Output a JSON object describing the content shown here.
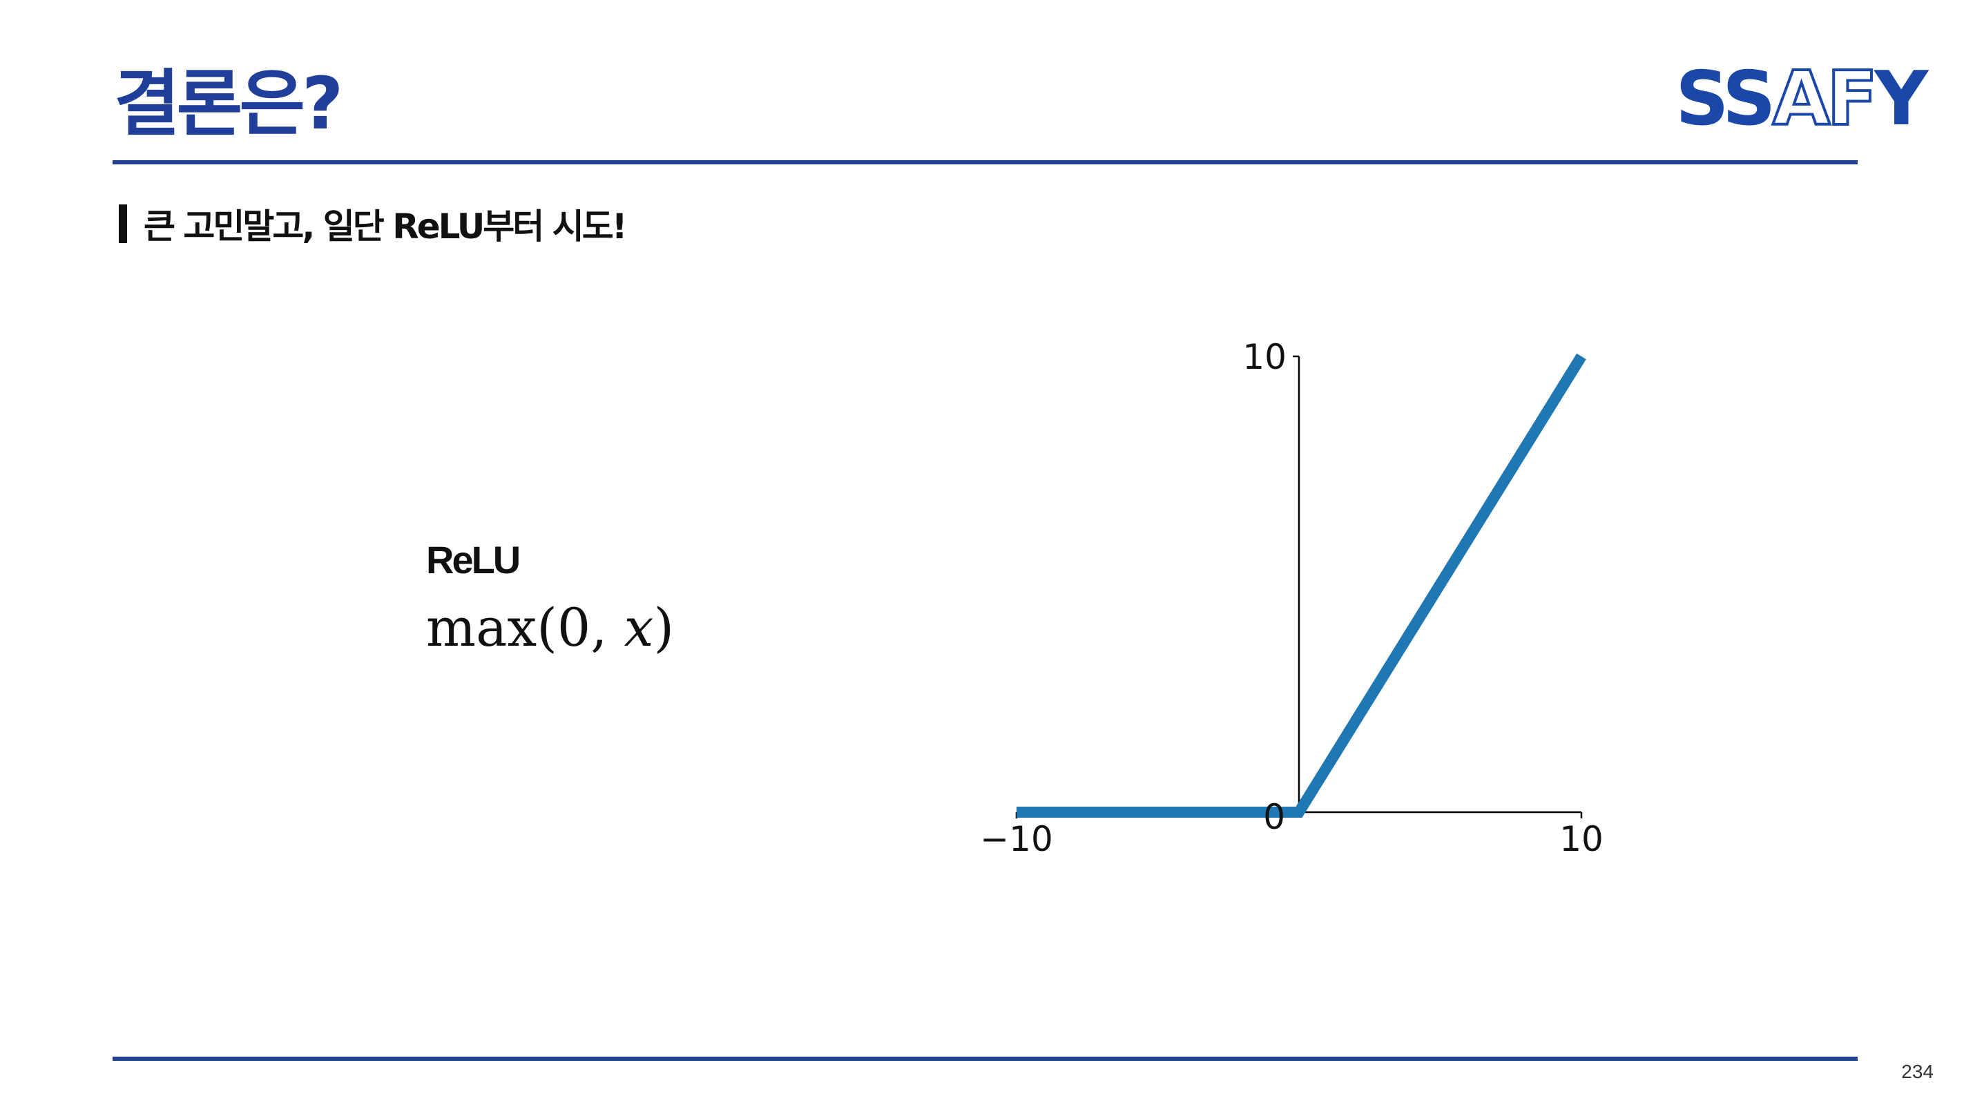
{
  "slide": {
    "title": "결론은?",
    "logo": {
      "part1": "SS",
      "part2": "AF",
      "part3": "Y"
    },
    "subtitle": "큰 고민말고, 일단 ReLU부터 시도!",
    "function": {
      "name": "ReLU",
      "formula_prefix": "max(0, ",
      "formula_var": "x",
      "formula_suffix": ")"
    },
    "page_number": "234",
    "colors": {
      "accent": "#1f3f9b",
      "rule": "#1f3f8f",
      "line": "#1f77b4"
    }
  },
  "chart_data": {
    "type": "line",
    "title": "",
    "xlabel": "",
    "ylabel": "",
    "xlim": [
      -10,
      10
    ],
    "ylim": [
      0,
      10
    ],
    "x_ticks": [
      -10,
      10
    ],
    "y_ticks": [
      10
    ],
    "x_tick_labels": [
      "−10",
      "10"
    ],
    "y_tick_labels": [
      "10"
    ],
    "origin_label": "0",
    "grid": false,
    "series": [
      {
        "x": [
          -10,
          0,
          10
        ],
        "y": [
          0,
          0,
          10
        ],
        "color": "#1f77b4"
      }
    ]
  }
}
